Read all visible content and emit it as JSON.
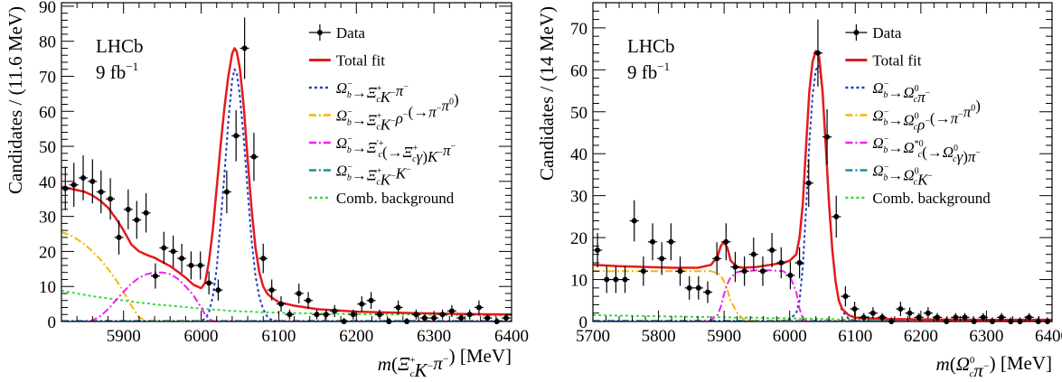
{
  "chart_data": [
    {
      "type": "line",
      "panel_label": "LHCb",
      "panel_lumi": "9 fb",
      "panel_lumi_sup": "−1",
      "xlabel": {
        "pre": "m(",
        "main": "Ξ",
        "sup": "+",
        "sub": "c",
        "post": "K",
        "post_sup": "−",
        "post2": "π",
        "post2_sup": "−",
        "close": ") [MeV]"
      },
      "ylabel": "Candidates / (11.6 MeV)",
      "xlim": [
        5820,
        6400
      ],
      "ylim": [
        0,
        91
      ],
      "x_ticks": [
        5900,
        6000,
        6100,
        6200,
        6300,
        6400
      ],
      "y_ticks": [
        0,
        10,
        20,
        30,
        40,
        50,
        60,
        70,
        80,
        90
      ],
      "legend": [
        {
          "key": "data",
          "text": "Data"
        },
        {
          "key": "total",
          "text": "Total fit"
        },
        {
          "key": "signal",
          "text": "Ω_b^−→Ξ_c^+K^−π^−"
        },
        {
          "key": "rho",
          "text": "Ω_b^−→Ξ_c^+K^−ρ^−(→π^−π^0)"
        },
        {
          "key": "xicp",
          "text": "Ω_b^−→Ξ_c^′+(→Ξ_c^+γ)K^−π^−"
        },
        {
          "key": "kk",
          "text": "Ω_b^−→Ξ_c^+K^−K^−"
        },
        {
          "key": "comb",
          "text": "Comb. background"
        }
      ],
      "data_points": {
        "x": [
          5825,
          5836,
          5848,
          5860,
          5871,
          5883,
          5894,
          5906,
          5917,
          5929,
          5941,
          5952,
          5964,
          5975,
          5987,
          5999,
          6010,
          6022,
          6033,
          6045,
          6056,
          6068,
          6080,
          6091,
          6103,
          6114,
          6126,
          6138,
          6149,
          6161,
          6172,
          6184,
          6196,
          6207,
          6219,
          6230,
          6242,
          6254,
          6265,
          6277,
          6288,
          6300,
          6311,
          6323,
          6335,
          6346,
          6358,
          6369,
          6381,
          6393
        ],
        "y": [
          38,
          39,
          41,
          40,
          37,
          35,
          24,
          32,
          29,
          31,
          13,
          21,
          20,
          18,
          16,
          16,
          11,
          9,
          37,
          53,
          78,
          47,
          18,
          9,
          5,
          2,
          8,
          6,
          2,
          2,
          3,
          0,
          2,
          5,
          6,
          2,
          0,
          4,
          0,
          2,
          1,
          1,
          2,
          3,
          1,
          2,
          4,
          1,
          0,
          1
        ],
        "err": [
          6.2,
          6.3,
          6.4,
          6.3,
          6.1,
          5.9,
          4.9,
          5.7,
          5.4,
          5.6,
          3.6,
          4.6,
          4.5,
          4.2,
          4.0,
          4.0,
          3.3,
          3.0,
          6.1,
          7.3,
          8.8,
          6.9,
          4.2,
          3.0,
          2.2,
          1.4,
          2.8,
          2.4,
          1.4,
          1.4,
          1.7,
          1.0,
          1.4,
          2.2,
          2.4,
          1.4,
          1.0,
          2.0,
          1.0,
          1.4,
          1.0,
          1.0,
          1.4,
          1.7,
          1.0,
          1.4,
          2.0,
          1.0,
          1.0,
          1.0
        ]
      },
      "curves": {
        "x": [
          5820,
          5830,
          5840,
          5850,
          5860,
          5870,
          5880,
          5890,
          5900,
          5910,
          5920,
          5930,
          5940,
          5950,
          5960,
          5970,
          5980,
          5990,
          6000,
          6005,
          6010,
          6015,
          6020,
          6025,
          6030,
          6035,
          6040,
          6043,
          6046,
          6050,
          6055,
          6060,
          6065,
          6070,
          6075,
          6080,
          6085,
          6090,
          6100,
          6120,
          6150,
          6200,
          6250,
          6300,
          6350,
          6400
        ],
        "total": [
          38.5,
          38.0,
          37.5,
          37.0,
          36.0,
          34.5,
          32.5,
          29.5,
          26.0,
          22.0,
          20.0,
          19.0,
          18.2,
          17.0,
          15.8,
          14.2,
          12.5,
          10.5,
          9.5,
          11.0,
          17.0,
          26.0,
          38.0,
          50.0,
          61.0,
          70.0,
          76.5,
          78.0,
          77.0,
          72.0,
          61.0,
          46.0,
          32.0,
          21.0,
          14.0,
          10.0,
          8.0,
          7.0,
          5.5,
          4.5,
          3.5,
          2.8,
          2.5,
          2.3,
          2.1,
          2.0
        ],
        "signal": [
          0,
          0,
          0,
          0,
          0,
          0,
          0,
          0,
          0,
          0,
          0,
          0,
          0,
          0,
          0,
          0,
          0,
          0,
          0.2,
          0.8,
          2.5,
          7,
          15,
          28,
          42,
          57,
          69,
          72,
          71,
          64,
          52,
          37,
          23,
          13,
          7,
          3.5,
          1.5,
          0.6,
          0,
          0,
          0,
          0,
          0,
          0,
          0,
          0
        ],
        "rho": [
          25.5,
          24.8,
          23.5,
          22.0,
          20.0,
          17.8,
          15.0,
          12.0,
          8.5,
          4.5,
          1.2,
          0,
          0,
          0,
          0,
          0,
          0,
          0,
          0,
          0,
          0,
          0,
          0,
          0,
          0,
          0,
          0,
          0,
          0,
          0,
          0,
          0,
          0,
          0,
          0,
          0,
          0,
          0,
          0,
          0,
          0,
          0,
          0,
          0,
          0,
          0
        ],
        "xicp": [
          0,
          0,
          0,
          0,
          0.3,
          1.5,
          3.5,
          6.0,
          8.5,
          10.8,
          12.5,
          13.5,
          14.0,
          14.0,
          13.5,
          12.2,
          10.0,
          7.5,
          4.0,
          2.0,
          0.8,
          0.2,
          0,
          0,
          0,
          0,
          0,
          0,
          0,
          0,
          0,
          0,
          0,
          0,
          0,
          0,
          0,
          0,
          0,
          0,
          0,
          0,
          0,
          0,
          0,
          0
        ],
        "kk": [
          0.2,
          0.2,
          0.2,
          0.2,
          0.2,
          0.2,
          0.2,
          0.2,
          0.2,
          0.2,
          0.2,
          0.2,
          0.2,
          0.2,
          0.2,
          0.2,
          0.2,
          0.2,
          0.2,
          0.2,
          0.2,
          0.2,
          0.2,
          0.2,
          0.2,
          0.2,
          0.2,
          0.2,
          0.2,
          0.2,
          0.2,
          0.2,
          0.2,
          0.2,
          0.2,
          0.2,
          0.2,
          0.2,
          0.2,
          0.2,
          0.2,
          0.2,
          0.2,
          0.2,
          0.2,
          0.2
        ],
        "comb": [
          8.8,
          8.4,
          8.0,
          7.6,
          7.2,
          6.9,
          6.6,
          6.3,
          6.0,
          5.7,
          5.4,
          5.2,
          4.9,
          4.7,
          4.5,
          4.3,
          4.1,
          3.9,
          3.7,
          3.6,
          3.5,
          3.4,
          3.3,
          3.3,
          3.2,
          3.1,
          3.0,
          3.0,
          3.0,
          2.9,
          2.9,
          2.8,
          2.8,
          2.7,
          2.7,
          2.6,
          2.6,
          2.6,
          2.5,
          2.4,
          2.3,
          2.1,
          2.0,
          1.9,
          1.8,
          1.7
        ]
      }
    },
    {
      "type": "line",
      "panel_label": "LHCb",
      "panel_lumi": "9 fb",
      "panel_lumi_sup": "−1",
      "xlabel": {
        "pre": "m(",
        "main": "Ω",
        "sup": "0",
        "sub": "c",
        "post": "π",
        "post_sup": "−",
        "close": ") [MeV]"
      },
      "ylabel": "Candidates / (14 MeV)",
      "xlim": [
        5700,
        6400
      ],
      "ylim": [
        0,
        76
      ],
      "x_ticks": [
        5700,
        5800,
        5900,
        6000,
        6100,
        6200,
        6300,
        6400
      ],
      "y_ticks": [
        0,
        10,
        20,
        30,
        40,
        50,
        60,
        70
      ],
      "legend": [
        {
          "key": "data",
          "text": "Data"
        },
        {
          "key": "total",
          "text": "Total fit"
        },
        {
          "key": "signal",
          "text": "Ω_b^−→Ω_c^0π^−"
        },
        {
          "key": "rho",
          "text": "Ω_b^−→Ω_c^0ρ^−(→π^−π^0)"
        },
        {
          "key": "xicp",
          "text": "Ω_b^−→Ω_c^*0(→Ω_c^0γ)π^−"
        },
        {
          "key": "kk",
          "text": "Ω_b^−→Ω_c^0K^−"
        },
        {
          "key": "comb",
          "text": "Comb. background"
        }
      ],
      "data_points": {
        "x": [
          5707,
          5721,
          5735,
          5749,
          5763,
          5777,
          5791,
          5805,
          5819,
          5833,
          5847,
          5861,
          5875,
          5889,
          5903,
          5917,
          5931,
          5945,
          5959,
          5973,
          5987,
          6001,
          6015,
          6029,
          6043,
          6057,
          6071,
          6085,
          6099,
          6113,
          6127,
          6141,
          6155,
          6169,
          6183,
          6197,
          6211,
          6225,
          6239,
          6253,
          6267,
          6281,
          6295,
          6309,
          6323,
          6337,
          6351,
          6365,
          6379,
          6393
        ],
        "y": [
          17,
          10,
          10,
          10,
          24,
          12,
          19,
          15,
          19,
          12,
          8,
          8,
          7,
          15,
          19,
          13,
          12,
          16,
          12,
          17,
          14,
          11,
          14,
          33,
          64,
          44,
          25,
          6,
          3,
          1,
          2,
          1,
          0,
          3,
          2,
          1,
          2,
          1,
          0,
          1,
          1,
          0,
          1,
          0,
          1,
          0,
          0,
          1,
          0,
          0
        ],
        "err": [
          4.1,
          3.2,
          3.2,
          3.2,
          4.9,
          3.5,
          4.4,
          3.9,
          4.4,
          3.5,
          2.8,
          2.8,
          2.6,
          3.9,
          4.4,
          3.6,
          3.5,
          4.0,
          3.5,
          4.1,
          3.7,
          3.3,
          3.7,
          5.7,
          8.0,
          6.6,
          5.0,
          2.4,
          1.7,
          1.0,
          1.4,
          1.0,
          1.0,
          1.7,
          1.4,
          1.0,
          1.4,
          1.0,
          1.0,
          1.0,
          1.0,
          1.0,
          1.0,
          1.0,
          1.0,
          1.0,
          1.0,
          1.0,
          1.0,
          1.0
        ]
      },
      "curves": {
        "x": [
          5700,
          5740,
          5780,
          5820,
          5860,
          5880,
          5890,
          5895,
          5900,
          5905,
          5910,
          5920,
          5930,
          5950,
          5970,
          5990,
          6000,
          6010,
          6015,
          6020,
          6025,
          6030,
          6035,
          6040,
          6045,
          6050,
          6055,
          6060,
          6065,
          6070,
          6075,
          6080,
          6090,
          6100,
          6150,
          6200,
          6300,
          6400
        ],
        "total": [
          13.5,
          13.2,
          13.0,
          12.8,
          12.8,
          13.5,
          15.5,
          18.0,
          19.0,
          17.5,
          14.5,
          13.0,
          12.8,
          13.0,
          13.5,
          14.0,
          14.5,
          16.0,
          20.0,
          28.0,
          42.0,
          55.0,
          62.0,
          64.5,
          63.0,
          55.0,
          42.0,
          28.0,
          17.0,
          9.5,
          5.0,
          3.0,
          1.5,
          0.9,
          0.6,
          0.5,
          0.4,
          0.4
        ],
        "signal": [
          0,
          0,
          0,
          0,
          0,
          0,
          0,
          0,
          0,
          0,
          0,
          0,
          0,
          0,
          0,
          0.2,
          0.5,
          2.0,
          5.0,
          13.0,
          27.0,
          43.0,
          54.0,
          60.0,
          61.0,
          55.0,
          42.0,
          28.0,
          17.0,
          9.5,
          5.0,
          2.5,
          0.6,
          0.1,
          0,
          0,
          0,
          0
        ],
        "rho": [
          12.0,
          12.0,
          12.0,
          12.0,
          12.0,
          12.0,
          11.5,
          11.0,
          9.5,
          7.5,
          5.0,
          2.0,
          0.5,
          0,
          0,
          0,
          0,
          0,
          0,
          0,
          0,
          0,
          0,
          0,
          0,
          0,
          0,
          0,
          0,
          0,
          0,
          0,
          0,
          0,
          0,
          0,
          0,
          0
        ],
        "xicp": [
          0,
          0,
          0,
          0,
          0,
          0.3,
          1.5,
          3.5,
          6.5,
          9.0,
          10.5,
          11.8,
          12.0,
          12.2,
          12.2,
          12.0,
          11.0,
          7.0,
          3.0,
          0.8,
          0,
          0,
          0,
          0,
          0,
          0,
          0,
          0,
          0,
          0,
          0,
          0,
          0,
          0,
          0,
          0,
          0,
          0
        ],
        "kk": [
          0.2,
          0.2,
          0.2,
          0.2,
          0.2,
          0.2,
          0.2,
          0.2,
          0.2,
          0.2,
          0.2,
          0.2,
          0.2,
          0.2,
          0.2,
          0.2,
          0.2,
          0.2,
          0.2,
          0.2,
          0.2,
          0.2,
          0.2,
          0.2,
          0.2,
          0.2,
          0.2,
          0.2,
          0.2,
          0.2,
          0.2,
          0.2,
          0.2,
          0.2,
          0.2,
          0.2,
          0.2,
          0.2
        ],
        "comb": [
          1.5,
          1.4,
          1.3,
          1.2,
          1.1,
          1.1,
          1.0,
          1.0,
          1.0,
          1.0,
          1.0,
          0.9,
          0.9,
          0.9,
          0.8,
          0.8,
          0.8,
          0.7,
          0.7,
          0.7,
          0.7,
          0.7,
          0.6,
          0.6,
          0.6,
          0.6,
          0.6,
          0.6,
          0.6,
          0.5,
          0.5,
          0.5,
          0.5,
          0.5,
          0.4,
          0.4,
          0.3,
          0.3
        ]
      }
    }
  ],
  "styles": {
    "data": {
      "color": "#000000"
    },
    "total": {
      "color": "#e41a1c"
    },
    "signal": {
      "color": "#1f3fbf"
    },
    "rho": {
      "color": "#f5b800"
    },
    "xicp": {
      "color": "#ee22ee"
    },
    "kk": {
      "color": "#1a8fa0"
    },
    "comb": {
      "color": "#33dd33"
    }
  }
}
